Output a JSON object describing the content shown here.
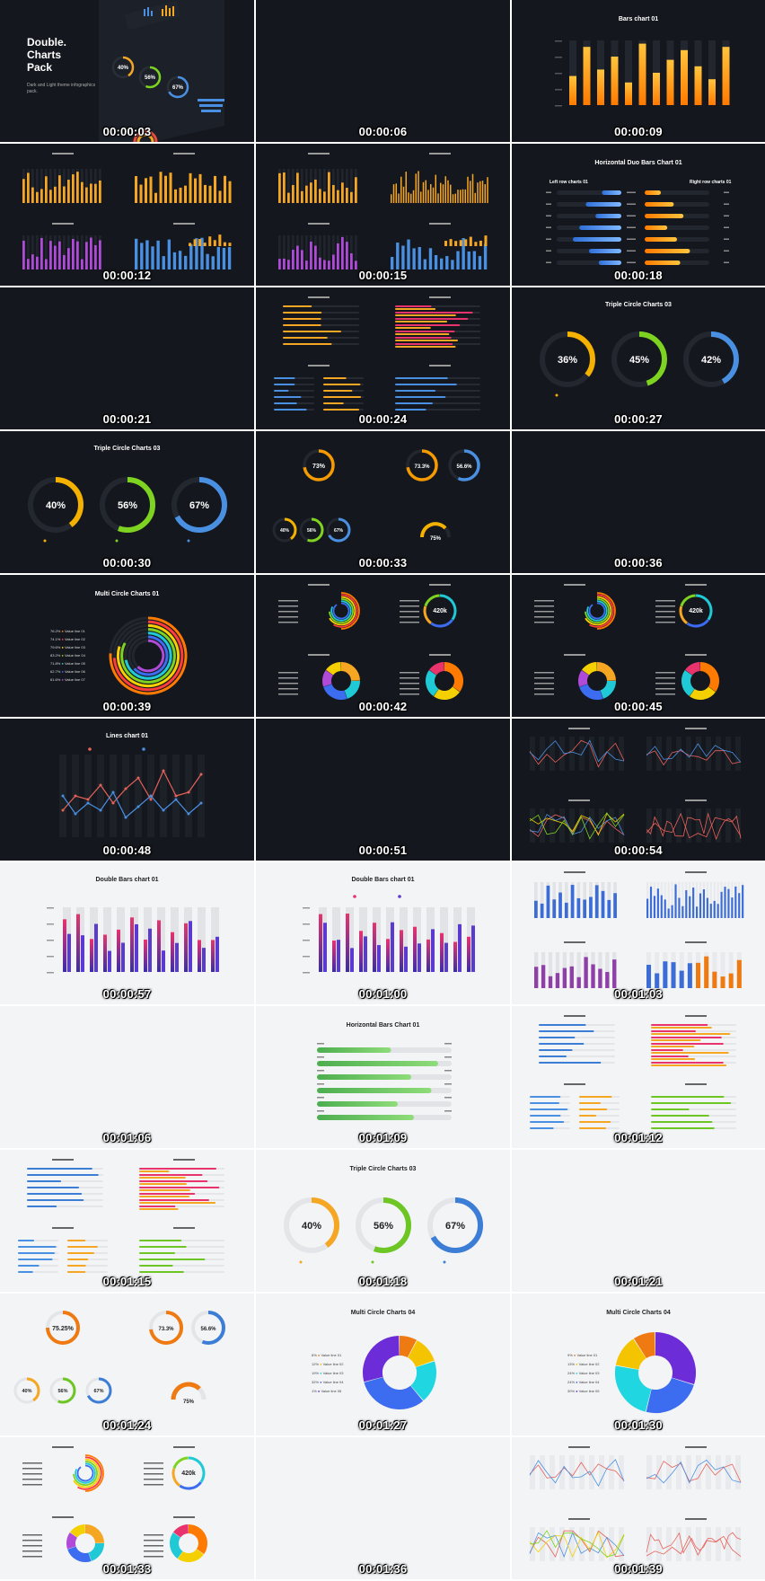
{
  "cells": [
    {
      "timestamp": "00:00:03",
      "theme": "dark"
    },
    {
      "timestamp": "00:00:06",
      "theme": "dark"
    },
    {
      "timestamp": "00:00:09",
      "theme": "dark"
    },
    {
      "timestamp": "00:00:12",
      "theme": "dark"
    },
    {
      "timestamp": "00:00:15",
      "theme": "dark"
    },
    {
      "timestamp": "00:00:18",
      "theme": "dark"
    },
    {
      "timestamp": "00:00:21",
      "theme": "dark"
    },
    {
      "timestamp": "00:00:24",
      "theme": "dark"
    },
    {
      "timestamp": "00:00:27",
      "theme": "dark"
    },
    {
      "timestamp": "00:00:30",
      "theme": "dark"
    },
    {
      "timestamp": "00:00:33",
      "theme": "dark"
    },
    {
      "timestamp": "00:00:36",
      "theme": "dark"
    },
    {
      "timestamp": "00:00:39",
      "theme": "dark"
    },
    {
      "timestamp": "00:00:42",
      "theme": "dark"
    },
    {
      "timestamp": "00:00:45",
      "theme": "dark"
    },
    {
      "timestamp": "00:00:48",
      "theme": "dark"
    },
    {
      "timestamp": "00:00:51",
      "theme": "dark"
    },
    {
      "timestamp": "00:00:54",
      "theme": "dark"
    },
    {
      "timestamp": "00:00:57",
      "theme": "light"
    },
    {
      "timestamp": "00:01:00",
      "theme": "light"
    },
    {
      "timestamp": "00:01:03",
      "theme": "light"
    },
    {
      "timestamp": "00:01:06",
      "theme": "light"
    },
    {
      "timestamp": "00:01:09",
      "theme": "light"
    },
    {
      "timestamp": "00:01:12",
      "theme": "light"
    },
    {
      "timestamp": "00:01:15",
      "theme": "light"
    },
    {
      "timestamp": "00:01:18",
      "theme": "light"
    },
    {
      "timestamp": "00:01:21",
      "theme": "light"
    },
    {
      "timestamp": "00:01:24",
      "theme": "light"
    },
    {
      "timestamp": "00:01:27",
      "theme": "light"
    },
    {
      "timestamp": "00:01:30",
      "theme": "light"
    },
    {
      "timestamp": "00:01:33",
      "theme": "light"
    },
    {
      "timestamp": "00:01:36",
      "theme": "light"
    },
    {
      "timestamp": "00:01:39",
      "theme": "light"
    }
  ],
  "intro": {
    "title_line1": "Double.",
    "title_line2": "Charts",
    "title_line3": "Pack",
    "subtitle": "Dark and Light theme infographics pack.",
    "ring_values": [
      "40%",
      "56%",
      "67%"
    ]
  },
  "titles": {
    "bars_chart_01": "Bars chart 01",
    "horizontal_duo_bars_chart_01": "Horizontal Duo Bars Chart 01",
    "left_row_charts": "Left row charts 01",
    "right_row_charts": "Right row charts 01",
    "triple_circle_charts_03": "Triple Circle Charts 03",
    "multi_circle_charts_01": "Multi Circle Charts 01",
    "lines_chart_01": "Lines chart 01",
    "double_bars_chart_01": "Double Bars chart 01",
    "horizontal_bars_chart_01": "Horizontal Bars Chart 01",
    "multi_circle_charts_04": "Multi Circle Charts 04"
  },
  "ring_values": {
    "triple_27": [
      "36%",
      "45%",
      "42%"
    ],
    "triple_30": [
      "40%",
      "56%",
      "67%"
    ],
    "circle_33_single": "73%",
    "circle_33_double": [
      "73.3%",
      "56.6%"
    ],
    "circle_33_triple": [
      "40%",
      "56%",
      "67%"
    ],
    "circle_33_half": "75%",
    "donut_420k": "420k",
    "triple_118": [
      "40%",
      "56%",
      "67%"
    ],
    "circle_124_single": "75.25%",
    "circle_124_double": [
      "73.3%",
      "56.6%"
    ],
    "circle_124_triple": [
      "40%",
      "56%",
      "67%"
    ],
    "circle_124_half": "75%"
  },
  "multi_circle_01_legend": [
    {
      "pct": "76.2%",
      "label": "Value line 01"
    },
    {
      "pct": "74.1%",
      "label": "Value line 02"
    },
    {
      "pct": "79.6%",
      "label": "Value line 03"
    },
    {
      "pct": "83.2%",
      "label": "Value line 04"
    },
    {
      "pct": "71.8%",
      "label": "Value line 05"
    },
    {
      "pct": "62.7%",
      "label": "Value line 06"
    },
    {
      "pct": "61.6%",
      "label": "Value line 07"
    }
  ],
  "multi_circle_04_legend": [
    {
      "pct": "8%",
      "label": "Value line 01"
    },
    {
      "pct": "12%",
      "label": "Value line 02"
    },
    {
      "pct": "19%",
      "label": "Value line 03"
    },
    {
      "pct": "32%",
      "label": "Value line 04"
    },
    {
      "pct": "1%",
      "label": "Value line 05"
    }
  ],
  "multi_circle_04_legend_b": [
    {
      "pct": "9%",
      "label": "Value line 01"
    },
    {
      "pct": "13%",
      "label": "Value line 02"
    },
    {
      "pct": "24%",
      "label": "Value line 03"
    },
    {
      "pct": "24%",
      "label": "Value line 04"
    },
    {
      "pct": "30%",
      "label": "Value line 05"
    }
  ],
  "colors": {
    "orange": "#f5a623",
    "amber": "#ff8c00",
    "green": "#7ed321",
    "blue": "#4a90e2",
    "purple": "#8e44ad",
    "red": "#e74c3c",
    "dark_bg": "#14171d",
    "light_bg": "#f3f4f6"
  }
}
